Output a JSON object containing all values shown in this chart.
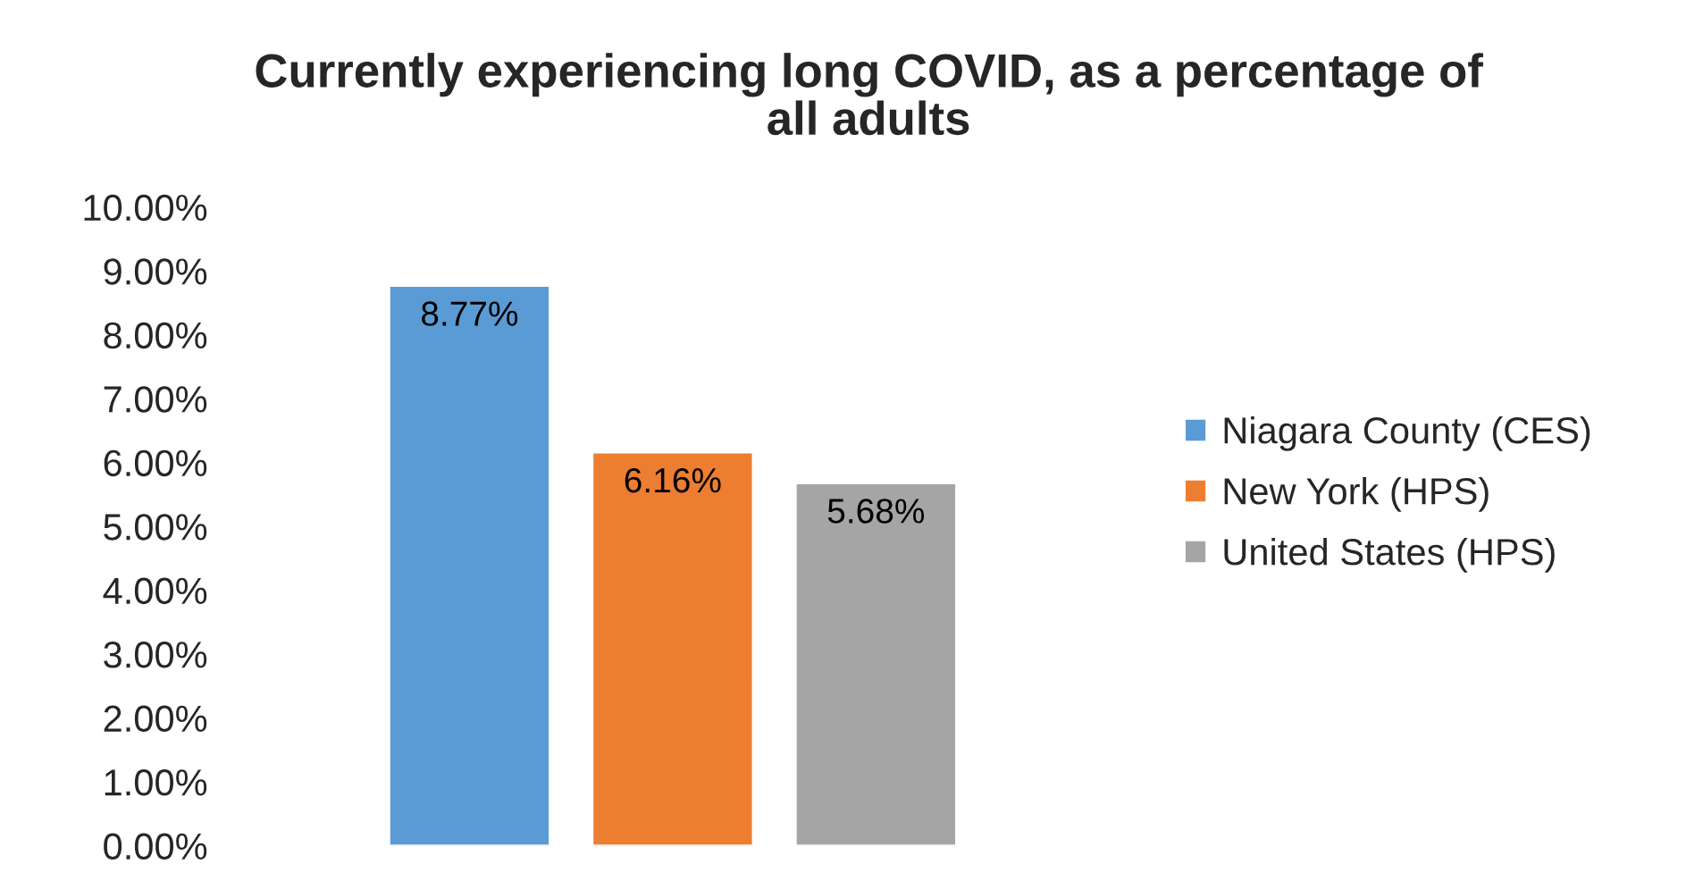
{
  "chart_data": {
    "type": "bar",
    "title": "Currently experiencing long COVID, as a percentage of all adults",
    "categories": [
      null
    ],
    "series": [
      {
        "name": "Niagara County (CES)",
        "color": "#5b9bd5",
        "values": [
          8.77
        ],
        "value_labels": [
          "8.77%"
        ]
      },
      {
        "name": "New York (HPS)",
        "color": "#ed7d31",
        "values": [
          6.16
        ],
        "value_labels": [
          "6.16%"
        ]
      },
      {
        "name": "United States (HPS)",
        "color": "#a5a5a5",
        "values": [
          5.68
        ],
        "value_labels": [
          "5.68%"
        ]
      }
    ],
    "ylim": [
      0,
      10
    ],
    "yticks": [
      {
        "value": 0,
        "label": "0.00%"
      },
      {
        "value": 1,
        "label": "1.00%"
      },
      {
        "value": 2,
        "label": "2.00%"
      },
      {
        "value": 3,
        "label": "3.00%"
      },
      {
        "value": 4,
        "label": "4.00%"
      },
      {
        "value": 5,
        "label": "5.00%"
      },
      {
        "value": 6,
        "label": "6.00%"
      },
      {
        "value": 7,
        "label": "7.00%"
      },
      {
        "value": 8,
        "label": "8.00%"
      },
      {
        "value": 9,
        "label": "9.00%"
      },
      {
        "value": 10,
        "label": "10.00%"
      }
    ],
    "grid": false,
    "legend": "right",
    "tick_labels": "y"
  }
}
